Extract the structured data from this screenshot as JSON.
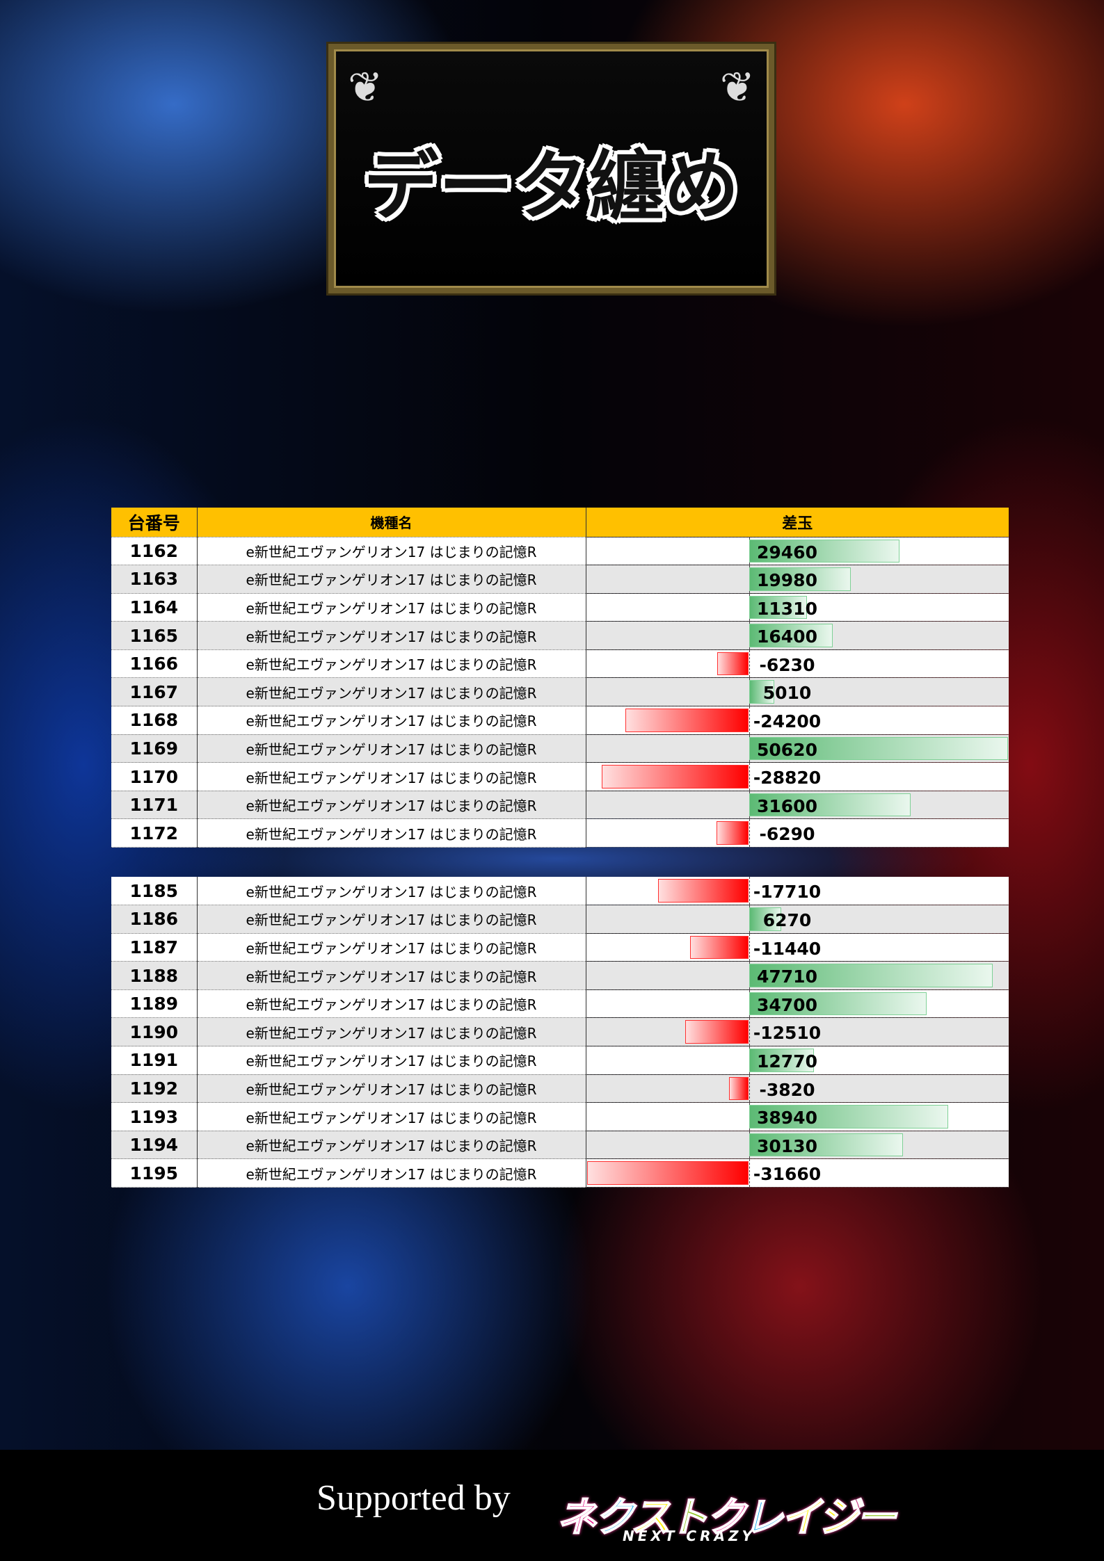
{
  "title": "データ纏め",
  "table": {
    "headers": [
      "台番号",
      "機種名",
      "差玉"
    ],
    "groups": [
      [
        {
          "no": "1162",
          "name": "e新世紀エヴァンゲリオン17 はじまりの記憶R",
          "diff": 29460
        },
        {
          "no": "1163",
          "name": "e新世紀エヴァンゲリオン17 はじまりの記憶R",
          "diff": 19980
        },
        {
          "no": "1164",
          "name": "e新世紀エヴァンゲリオン17 はじまりの記憶R",
          "diff": 11310
        },
        {
          "no": "1165",
          "name": "e新世紀エヴァンゲリオン17 はじまりの記憶R",
          "diff": 16400
        },
        {
          "no": "1166",
          "name": "e新世紀エヴァンゲリオン17 はじまりの記憶R",
          "diff": -6230
        },
        {
          "no": "1167",
          "name": "e新世紀エヴァンゲリオン17 はじまりの記憶R",
          "diff": 5010
        },
        {
          "no": "1168",
          "name": "e新世紀エヴァンゲリオン17 はじまりの記憶R",
          "diff": -24200
        },
        {
          "no": "1169",
          "name": "e新世紀エヴァンゲリオン17 はじまりの記憶R",
          "diff": 50620
        },
        {
          "no": "1170",
          "name": "e新世紀エヴァンゲリオン17 はじまりの記憶R",
          "diff": -28820
        },
        {
          "no": "1171",
          "name": "e新世紀エヴァンゲリオン17 はじまりの記憶R",
          "diff": 31600
        },
        {
          "no": "1172",
          "name": "e新世紀エヴァンゲリオン17 はじまりの記憶R",
          "diff": -6290
        }
      ],
      [
        {
          "no": "1185",
          "name": "e新世紀エヴァンゲリオン17 はじまりの記憶R",
          "diff": -17710
        },
        {
          "no": "1186",
          "name": "e新世紀エヴァンゲリオン17 はじまりの記憶R",
          "diff": 6270
        },
        {
          "no": "1187",
          "name": "e新世紀エヴァンゲリオン17 はじまりの記憶R",
          "diff": -11440
        },
        {
          "no": "1188",
          "name": "e新世紀エヴァンゲリオン17 はじまりの記憶R",
          "diff": 47710
        },
        {
          "no": "1189",
          "name": "e新世紀エヴァンゲリオン17 はじまりの記憶R",
          "diff": 34700
        },
        {
          "no": "1190",
          "name": "e新世紀エヴァンゲリオン17 はじまりの記憶R",
          "diff": -12510
        },
        {
          "no": "1191",
          "name": "e新世紀エヴァンゲリオン17 はじまりの記憶R",
          "diff": 12770
        },
        {
          "no": "1192",
          "name": "e新世紀エヴァンゲリオン17 はじまりの記憶R",
          "diff": -3820
        },
        {
          "no": "1193",
          "name": "e新世紀エヴァンゲリオン17 はじまりの記憶R",
          "diff": 38940
        },
        {
          "no": "1194",
          "name": "e新世紀エヴァンゲリオン17 はじまりの記憶R",
          "diff": 30130
        },
        {
          "no": "1195",
          "name": "e新世紀エヴァンゲリオン17 はじまりの記憶R",
          "diff": -31660
        }
      ]
    ]
  },
  "colors": {
    "header": "#ffc000",
    "positive": "#5cba74",
    "negative": "#ff0000"
  },
  "footer": {
    "supported": "Supported by",
    "logo": "ネクストクレイジー",
    "logo_sub": "NEXT CRAZY"
  }
}
